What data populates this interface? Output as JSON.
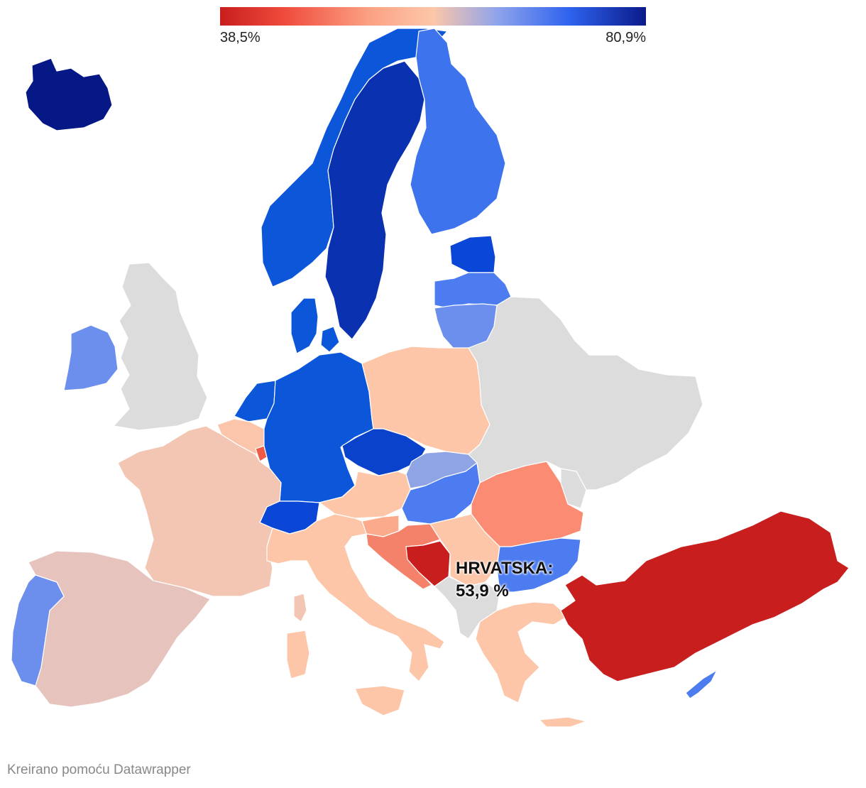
{
  "legend": {
    "min_label": "38,5%",
    "max_label": "80,9%",
    "min_color": "#c81e1e",
    "max_color": "#0b1a8a"
  },
  "callout": {
    "line1": "HRVATSKA:",
    "line2": "53,9 %"
  },
  "credit": "Kreirano pomoću Datawrapper",
  "no_data_color": "#dcdcdc"
}
